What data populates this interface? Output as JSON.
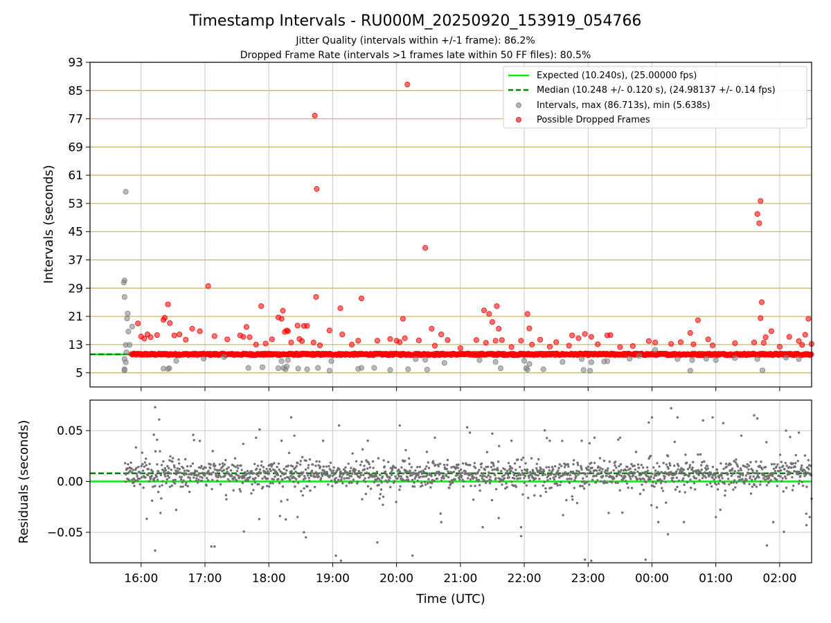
{
  "title": "Timestamp Intervals - RU000M_20250920_153919_054766",
  "subtitle_1": "Jitter Quality (intervals within +/-1 frame): 86.2%",
  "subtitle_2": "Dropped Frame Rate (intervals >1 frames late within 50 FF files): 80.5%",
  "colors": {
    "expected": "#00ee00",
    "median": "#008000",
    "intervals": "#808080",
    "dropped": "#ff0000",
    "hgrid_top": "#c8b060",
    "vgrid": "#c8c8c8",
    "residuals": "#707070"
  },
  "chart_data": [
    {
      "type": "scatter",
      "ylabel": "Intervals (seconds)",
      "xlabel": "",
      "x_unit": "hours since 00:00 UTC of start day",
      "xlim": [
        15.2,
        26.5
      ],
      "ylim": [
        1,
        93
      ],
      "yticks": [
        5,
        13,
        21,
        29,
        37,
        45,
        53,
        61,
        69,
        77,
        85,
        93
      ],
      "xticks": [
        16,
        17,
        18,
        19,
        20,
        21,
        22,
        23,
        24,
        25,
        26
      ],
      "xticklabels": [
        "16:00",
        "17:00",
        "18:00",
        "19:00",
        "20:00",
        "21:00",
        "22:00",
        "23:00",
        "00:00",
        "01:00",
        "02:00"
      ],
      "grid": "y-gold, x-gray",
      "legend_position": "upper-right",
      "series": [
        {
          "name": "Expected (10.240s), (25.00000 fps)",
          "kind": "hline",
          "y": 10.24
        },
        {
          "name": "Median (10.248 +/- 0.120 s), (24.98137 +/- 0.14 fps)",
          "kind": "hline",
          "y": 10.248
        },
        {
          "name": "Intervals, max (86.713s), min (5.638s)",
          "kind": "points",
          "points": [
            [
              15.76,
              56.3
            ],
            [
              15.74,
              31.2
            ],
            [
              15.73,
              30.6
            ],
            [
              15.74,
              26.5
            ],
            [
              15.79,
              21.8
            ],
            [
              15.78,
              20.4
            ],
            [
              15.8,
              16.7
            ],
            [
              15.86,
              18.1
            ],
            [
              15.76,
              12.9
            ],
            [
              15.82,
              12.9
            ],
            [
              15.77,
              10.8
            ],
            [
              15.74,
              8.9
            ],
            [
              15.76,
              8.0
            ],
            [
              15.74,
              6.0
            ],
            [
              15.74,
              5.7
            ],
            [
              16.35,
              6.2
            ],
            [
              16.42,
              6.1
            ],
            [
              16.44,
              6.3
            ],
            [
              16.55,
              8.4
            ],
            [
              16.98,
              9.0
            ],
            [
              17.3,
              9.5
            ],
            [
              17.68,
              6.4
            ],
            [
              17.9,
              6.6
            ],
            [
              18.15,
              6.3
            ],
            [
              18.2,
              8.3
            ],
            [
              18.23,
              6.4
            ],
            [
              18.26,
              6.0
            ],
            [
              18.28,
              6.8
            ],
            [
              18.3,
              8.6
            ],
            [
              18.46,
              6.2
            ],
            [
              18.6,
              6.0
            ],
            [
              18.77,
              6.4
            ],
            [
              18.95,
              5.6
            ],
            [
              18.98,
              8.3
            ],
            [
              19.4,
              6.1
            ],
            [
              19.45,
              6.4
            ],
            [
              19.65,
              6.4
            ],
            [
              19.9,
              5.8
            ],
            [
              20.18,
              6.0
            ],
            [
              20.3,
              8.9
            ],
            [
              20.45,
              8.7
            ],
            [
              20.48,
              5.9
            ],
            [
              20.75,
              7.8
            ],
            [
              21.3,
              8.6
            ],
            [
              21.55,
              8.1
            ],
            [
              21.63,
              6.3
            ],
            [
              22.0,
              8.4
            ],
            [
              22.03,
              6.3
            ],
            [
              22.05,
              5.9
            ],
            [
              22.08,
              7.5
            ],
            [
              22.3,
              6.0
            ],
            [
              22.6,
              8.1
            ],
            [
              22.9,
              8.9
            ],
            [
              22.93,
              5.8
            ],
            [
              23.03,
              5.6
            ],
            [
              23.05,
              8.0
            ],
            [
              23.25,
              8.2
            ],
            [
              23.3,
              8.3
            ],
            [
              23.65,
              9.0
            ],
            [
              23.8,
              9.8
            ],
            [
              24.05,
              11.5
            ],
            [
              24.4,
              8.9
            ],
            [
              24.6,
              5.6
            ],
            [
              24.63,
              8.6
            ],
            [
              24.85,
              9.0
            ],
            [
              25.0,
              8.6
            ],
            [
              25.3,
              9.2
            ],
            [
              25.65,
              8.9
            ],
            [
              25.73,
              5.7
            ],
            [
              26.1,
              9.3
            ],
            [
              26.3,
              8.9
            ]
          ]
        },
        {
          "name": "Possible Dropped Frames",
          "kind": "points",
          "band": [
            15.85,
            26.5,
            10.24,
            0.5
          ],
          "points": [
            [
              20.17,
              86.7
            ],
            [
              18.72,
              77.9
            ],
            [
              18.75,
              57.1
            ],
            [
              20.45,
              40.4
            ],
            [
              17.05,
              29.6
            ],
            [
              18.74,
              26.5
            ],
            [
              19.45,
              26.1
            ],
            [
              16.42,
              24.4
            ],
            [
              17.88,
              23.9
            ],
            [
              19.12,
              23.3
            ],
            [
              21.57,
              23.9
            ],
            [
              18.22,
              22.6
            ],
            [
              21.37,
              22.7
            ],
            [
              22.05,
              21.7
            ],
            [
              21.45,
              21.7
            ],
            [
              16.37,
              20.6
            ],
            [
              18.15,
              20.7
            ],
            [
              16.35,
              20.0
            ],
            [
              18.2,
              20.3
            ],
            [
              21.5,
              19.4
            ],
            [
              16.45,
              19.1
            ],
            [
              24.72,
              19.9
            ],
            [
              20.1,
              20.3
            ],
            [
              15.95,
              19.0
            ],
            [
              18.45,
              18.4
            ],
            [
              18.55,
              18.3
            ],
            [
              18.6,
              18.3
            ],
            [
              17.65,
              18.0
            ],
            [
              20.55,
              17.5
            ],
            [
              22.08,
              17.6
            ],
            [
              21.6,
              17.5
            ],
            [
              18.28,
              17.0
            ],
            [
              18.95,
              17.0
            ],
            [
              16.8,
              17.5
            ],
            [
              18.25,
              16.6
            ],
            [
              18.3,
              16.8
            ],
            [
              19.15,
              15.9
            ],
            [
              20.7,
              15.9
            ],
            [
              16.92,
              16.8
            ],
            [
              17.15,
              15.4
            ],
            [
              17.55,
              15.6
            ],
            [
              17.6,
              15.2
            ],
            [
              17.7,
              15.1
            ],
            [
              18.05,
              14.5
            ],
            [
              18.48,
              14.6
            ],
            [
              18.52,
              14.0
            ],
            [
              16.1,
              15.9
            ],
            [
              16.15,
              15.1
            ],
            [
              16.25,
              15.7
            ],
            [
              16.52,
              15.6
            ],
            [
              16.6,
              15.9
            ],
            [
              16.0,
              15.3
            ],
            [
              16.05,
              14.7
            ],
            [
              16.7,
              14.4
            ],
            [
              17.35,
              14.5
            ],
            [
              17.8,
              13.0
            ],
            [
              17.95,
              13.3
            ],
            [
              18.35,
              13.6
            ],
            [
              18.7,
              13.6
            ],
            [
              18.8,
              12.8
            ],
            [
              19.3,
              13.0
            ],
            [
              19.4,
              14.1
            ],
            [
              19.7,
              14.1
            ],
            [
              19.9,
              14.6
            ],
            [
              20.0,
              14.1
            ],
            [
              20.05,
              13.7
            ],
            [
              20.13,
              14.8
            ],
            [
              20.35,
              14.2
            ],
            [
              20.6,
              12.7
            ],
            [
              20.8,
              14.3
            ],
            [
              21.0,
              12.0
            ],
            [
              21.25,
              14.3
            ],
            [
              21.4,
              13.5
            ],
            [
              21.55,
              14.1
            ],
            [
              21.65,
              14.3
            ],
            [
              21.8,
              12.3
            ],
            [
              21.95,
              14.1
            ],
            [
              22.12,
              13.0
            ],
            [
              22.25,
              14.4
            ],
            [
              22.4,
              12.4
            ],
            [
              22.5,
              13.7
            ],
            [
              22.7,
              12.7
            ],
            [
              22.75,
              15.6
            ],
            [
              22.85,
              14.8
            ],
            [
              22.95,
              16.0
            ],
            [
              23.05,
              15.2
            ],
            [
              23.15,
              13.1
            ],
            [
              23.3,
              15.6
            ],
            [
              23.35,
              15.7
            ],
            [
              23.5,
              12.3
            ],
            [
              23.7,
              12.6
            ],
            [
              23.95,
              14.0
            ],
            [
              24.05,
              13.6
            ],
            [
              24.3,
              13.2
            ],
            [
              24.45,
              13.7
            ],
            [
              24.6,
              16.3
            ],
            [
              24.65,
              13.1
            ],
            [
              24.88,
              14.5
            ],
            [
              24.95,
              12.8
            ],
            [
              25.3,
              13.4
            ],
            [
              25.6,
              13.6
            ],
            [
              25.65,
              50.0
            ],
            [
              25.68,
              47.4
            ],
            [
              25.7,
              53.7
            ],
            [
              25.72,
              25.0
            ],
            [
              25.7,
              20.5
            ],
            [
              25.78,
              15.1
            ],
            [
              25.75,
              13.5
            ],
            [
              25.87,
              16.8
            ],
            [
              26.0,
              12.4
            ],
            [
              26.15,
              15.2
            ],
            [
              26.3,
              14.0
            ],
            [
              26.35,
              12.9
            ],
            [
              26.45,
              20.3
            ],
            [
              26.5,
              13.2
            ],
            [
              26.4,
              15.8
            ]
          ]
        }
      ]
    },
    {
      "type": "scatter",
      "ylabel": "Residuals (seconds)",
      "xlabel": "Time (UTC)",
      "xlim": [
        15.2,
        26.5
      ],
      "ylim": [
        -0.08,
        0.08
      ],
      "yticks": [
        -0.05,
        0.0,
        0.05
      ],
      "yticklabels": [
        "−0.05",
        "0.00",
        "0.05"
      ],
      "grid": "both-gray",
      "series": [
        {
          "name": "Expected",
          "kind": "hline",
          "y": 0.0
        },
        {
          "name": "Median",
          "kind": "hline",
          "y": 0.008
        },
        {
          "name": "Residuals",
          "kind": "points",
          "band": [
            15.75,
            26.5,
            0.007,
            0.012
          ],
          "points": [
            [
              16.22,
              0.073
            ],
            [
              16.2,
              0.046
            ],
            [
              16.25,
              0.041
            ],
            [
              16.22,
              -0.068
            ],
            [
              18.35,
              0.063
            ],
            [
              19.05,
              -0.073
            ],
            [
              19.13,
              -0.078
            ],
            [
              19.1,
              0.055
            ],
            [
              20.25,
              -0.073
            ],
            [
              20.05,
              0.055
            ],
            [
              21.35,
              -0.045
            ],
            [
              21.6,
              -0.036
            ],
            [
              21.95,
              -0.045
            ],
            [
              23.1,
              0.043
            ],
            [
              22.95,
              -0.077
            ],
            [
              23.05,
              -0.078
            ],
            [
              23.9,
              -0.077
            ],
            [
              24.0,
              0.063
            ],
            [
              23.95,
              0.058
            ],
            [
              24.3,
              0.072
            ],
            [
              24.25,
              -0.052
            ],
            [
              24.4,
              0.063
            ],
            [
              24.8,
              0.06
            ],
            [
              24.95,
              0.063
            ],
            [
              25.6,
              0.065
            ],
            [
              25.65,
              0.062
            ],
            [
              25.8,
              -0.063
            ],
            [
              26.42,
              -0.043
            ],
            [
              26.5,
              -0.017
            ],
            [
              26.47,
              -0.035
            ],
            [
              18.55,
              -0.05
            ],
            [
              18.58,
              -0.055
            ],
            [
              19.7,
              -0.06
            ],
            [
              20.7,
              -0.04
            ],
            [
              18.4,
              0.045
            ],
            [
              17.8,
              0.043
            ],
            [
              17.85,
              -0.037
            ],
            [
              16.55,
              -0.028
            ],
            [
              17.1,
              -0.064
            ],
            [
              17.15,
              -0.064
            ],
            [
              17.6,
              0.037
            ],
            [
              18.2,
              0.04
            ],
            [
              18.45,
              -0.035
            ],
            [
              18.85,
              0.04
            ],
            [
              19.55,
              0.04
            ],
            [
              20.6,
              0.043
            ],
            [
              21.15,
              0.048
            ],
            [
              21.5,
              0.047
            ],
            [
              21.8,
              0.04
            ],
            [
              22.4,
              0.04
            ],
            [
              22.9,
              0.04
            ],
            [
              23.5,
              0.043
            ],
            [
              24.1,
              -0.04
            ],
            [
              24.5,
              -0.04
            ],
            [
              25.0,
              -0.035
            ],
            [
              25.4,
              0.045
            ],
            [
              25.9,
              -0.04
            ],
            [
              26.1,
              0.05
            ],
            [
              26.3,
              0.048
            ]
          ]
        }
      ]
    }
  ],
  "legend": {
    "expected": "Expected (10.240s), (25.00000 fps)",
    "median": "Median (10.248 +/- 0.120 s), (24.98137 +/- 0.14 fps)",
    "intervals": "Intervals, max (86.713s), min (5.638s)",
    "dropped": "Possible Dropped Frames"
  }
}
